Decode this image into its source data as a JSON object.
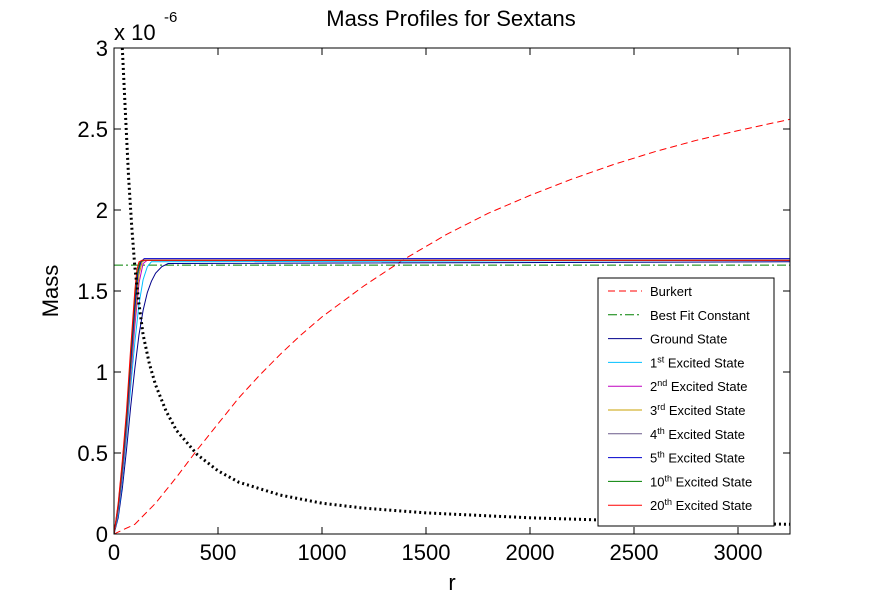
{
  "chart_data": {
    "type": "line",
    "title": "Mass Profiles for Sextans",
    "xlabel": "r",
    "ylabel": "Mass",
    "y_multiplier_base": "x 10",
    "y_multiplier_exp": "-6",
    "xlim": [
      0,
      3250
    ],
    "ylim": [
      0,
      3
    ],
    "xticks": [
      0,
      500,
      1000,
      1500,
      2000,
      2500,
      3000
    ],
    "xtick_labels": [
      "0",
      "500",
      "1000",
      "1500",
      "2000",
      "2500",
      "3000"
    ],
    "yticks": [
      0,
      0.5,
      1,
      1.5,
      2,
      2.5,
      3
    ],
    "ytick_labels": [
      "0",
      "0.5",
      "1",
      "1.5",
      "2",
      "2.5",
      "3"
    ],
    "grid": false,
    "legend_position": "lower-right",
    "series": [
      {
        "name": "Burkert",
        "legend_main": "Burkert",
        "legend_sup": "",
        "legend_rest": "",
        "color": "#ff0000",
        "dash": "7,4",
        "x": [
          0,
          100,
          200,
          300,
          400,
          500,
          600,
          700,
          800,
          900,
          1000,
          1200,
          1400,
          1600,
          1800,
          2000,
          2200,
          2400,
          2600,
          2800,
          3000,
          3250
        ],
        "y": [
          0,
          0.06,
          0.19,
          0.35,
          0.52,
          0.68,
          0.84,
          0.98,
          1.11,
          1.23,
          1.34,
          1.53,
          1.7,
          1.85,
          1.98,
          2.09,
          2.19,
          2.28,
          2.36,
          2.43,
          2.49,
          2.56
        ]
      },
      {
        "name": "Best Fit Constant",
        "legend_main": "Best Fit Constant",
        "legend_sup": "",
        "legend_rest": "",
        "color": "#008000",
        "dash": "9,3,2,3",
        "x": [
          0,
          3250
        ],
        "y": [
          1.66,
          1.66
        ]
      },
      {
        "name": "Ground State",
        "legend_main": "Ground State",
        "legend_sup": "",
        "legend_rest": "",
        "color": "#00008b",
        "dash": "",
        "x": [
          0,
          20,
          40,
          60,
          80,
          100,
          120,
          140,
          160,
          180,
          200,
          230,
          260,
          3250
        ],
        "y": [
          0,
          0.1,
          0.28,
          0.52,
          0.78,
          1.02,
          1.23,
          1.38,
          1.49,
          1.56,
          1.61,
          1.65,
          1.67,
          1.68
        ]
      },
      {
        "name": "1st Excited State",
        "legend_main": "1",
        "legend_sup": "st",
        "legend_rest": " Excited State",
        "color": "#00bfff",
        "dash": "",
        "x": [
          0,
          20,
          40,
          60,
          80,
          100,
          120,
          140,
          160,
          180,
          3250
        ],
        "y": [
          0,
          0.12,
          0.33,
          0.6,
          0.9,
          1.18,
          1.42,
          1.57,
          1.65,
          1.68,
          1.69
        ]
      },
      {
        "name": "2nd Excited State",
        "legend_main": "2",
        "legend_sup": "nd",
        "legend_rest": " Excited State",
        "color": "#bf00bf",
        "dash": "",
        "x": [
          0,
          20,
          40,
          60,
          80,
          100,
          120,
          140,
          160,
          3250
        ],
        "y": [
          0,
          0.14,
          0.36,
          0.64,
          0.96,
          1.28,
          1.55,
          1.67,
          1.69,
          1.69
        ]
      },
      {
        "name": "3rd Excited State",
        "legend_main": "3",
        "legend_sup": "rd",
        "legend_rest": " Excited State",
        "color": "#c8a000",
        "dash": "",
        "x": [
          0,
          20,
          40,
          60,
          80,
          100,
          120,
          135,
          150,
          3250
        ],
        "y": [
          0,
          0.15,
          0.38,
          0.66,
          0.99,
          1.33,
          1.6,
          1.68,
          1.69,
          1.69
        ]
      },
      {
        "name": "4th Excited State",
        "legend_main": "4",
        "legend_sup": "th",
        "legend_rest": " Excited State",
        "color": "#6a5a8a",
        "dash": "",
        "x": [
          0,
          20,
          40,
          60,
          80,
          100,
          115,
          130,
          145,
          3250
        ],
        "y": [
          0,
          0.16,
          0.4,
          0.68,
          1.02,
          1.37,
          1.6,
          1.68,
          1.69,
          1.69
        ]
      },
      {
        "name": "5th Excited State",
        "legend_main": "5",
        "legend_sup": "th",
        "legend_rest": " Excited State",
        "color": "#0000cd",
        "dash": "",
        "x": [
          0,
          20,
          40,
          60,
          80,
          100,
          115,
          130,
          145,
          3250
        ],
        "y": [
          0,
          0.17,
          0.41,
          0.7,
          1.05,
          1.4,
          1.62,
          1.68,
          1.7,
          1.7
        ]
      },
      {
        "name": "10th Excited State",
        "legend_main": "10",
        "legend_sup": "th",
        "legend_rest": " Excited State",
        "color": "#008000",
        "dash": "",
        "x": [
          0,
          20,
          40,
          60,
          80,
          100,
          110,
          125,
          140,
          3250
        ],
        "y": [
          0,
          0.18,
          0.43,
          0.73,
          1.1,
          1.46,
          1.6,
          1.68,
          1.69,
          1.69
        ]
      },
      {
        "name": "20th Excited State",
        "legend_main": "20",
        "legend_sup": "th",
        "legend_rest": " Excited State",
        "color": "#ff0000",
        "dash": "",
        "x": [
          0,
          20,
          40,
          60,
          80,
          100,
          110,
          120,
          135,
          3250
        ],
        "y": [
          0,
          0.19,
          0.45,
          0.76,
          1.14,
          1.5,
          1.63,
          1.68,
          1.69,
          1.69
        ]
      }
    ],
    "dotted_curve": {
      "name": "dotted reference curve",
      "color": "#000000",
      "x": [
        40,
        55,
        70,
        85,
        100,
        120,
        140,
        170,
        200,
        250,
        300,
        400,
        500,
        600,
        800,
        1000,
        1200,
        1500,
        2000,
        2500,
        3000,
        3250
      ],
      "y": [
        3.0,
        2.6,
        2.2,
        1.9,
        1.65,
        1.42,
        1.23,
        1.05,
        0.92,
        0.76,
        0.64,
        0.49,
        0.39,
        0.32,
        0.24,
        0.19,
        0.16,
        0.13,
        0.1,
        0.08,
        0.065,
        0.06
      ]
    }
  }
}
